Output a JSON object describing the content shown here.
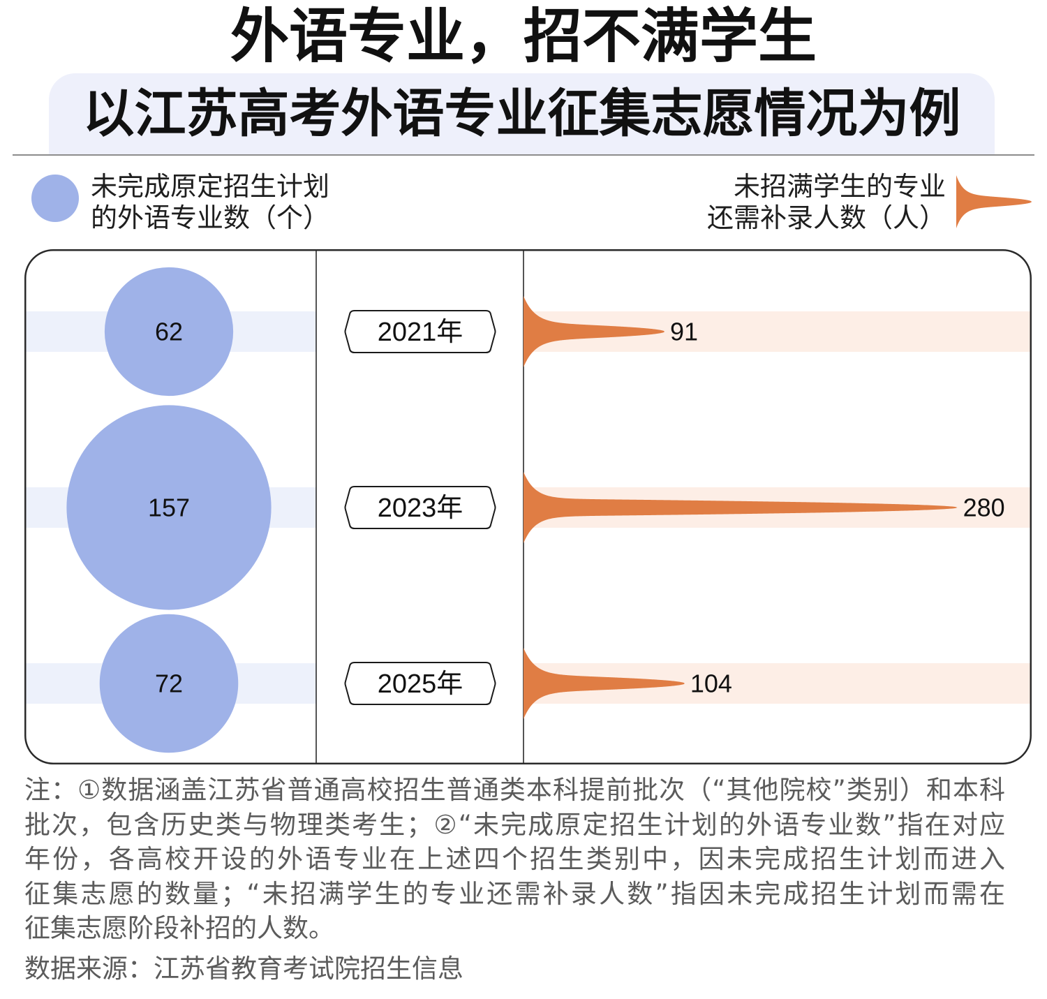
{
  "colors": {
    "subtitle_band": "#eef0fb",
    "band_left": "#edf1fb",
    "band_right": "#fdeee6",
    "frame": "#2a2a2a"
  },
  "chart_data": {
    "type": "bar",
    "title": "外语专业，招不满学生",
    "subtitle": "以江苏高考外语专业征集志愿情况为例",
    "categories": [
      "2021年",
      "2023年",
      "2025年"
    ],
    "series": [
      {
        "label_lines": [
          "未完成原定招生计划",
          "的外语专业数（个）"
        ],
        "values": [
          62,
          157,
          72
        ],
        "mark": "circle",
        "color": "#9fb2e8"
      },
      {
        "label_lines": [
          "未招满学生的专业",
          "还需补录人数（人）"
        ],
        "values": [
          91,
          280,
          104
        ],
        "mark": "spike",
        "color": "#e07d44"
      }
    ],
    "legend_placement": "top",
    "grid": false
  },
  "notes": {
    "lines": [
      "注：①数据涵盖江苏省普通高校招生普通类本科提前批次（“其他院校”类别）和本科",
      "批次，包含历史类与物理类考生；②“未完成原定招生计划的外语专业数”指在对应",
      "年份，各高校开设的外语专业在上述四个招生类别中，因未完成招生计划而进入",
      "征集志愿的数量；“未招满学生的专业还需补录人数”指因未完成招生计划而需在",
      "征集志愿阶段补招的人数。"
    ],
    "source": "数据来源：江苏省教育考试院招生信息"
  }
}
